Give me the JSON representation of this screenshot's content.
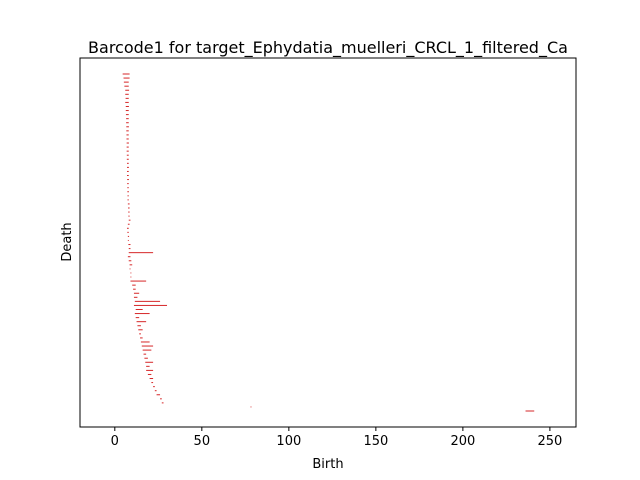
{
  "chart_data": {
    "type": "barcode",
    "title": "Barcode1 for target_Ephydatia_muelleri_CRCL_1_filtered_Ca",
    "xlabel": "Birth",
    "ylabel": "Death",
    "xlim": [
      -20,
      265
    ],
    "xticks": [
      0,
      50,
      100,
      150,
      200,
      250
    ],
    "yticks_shown": false,
    "grid": false,
    "bar_color": "#d62728",
    "bars": [
      [
        4.5,
        8.5
      ],
      [
        5.0,
        8.5
      ],
      [
        5.2,
        8.0
      ],
      [
        5.5,
        8.0
      ],
      [
        6.0,
        8.2
      ],
      [
        6.0,
        8.0
      ],
      [
        6.2,
        8.0
      ],
      [
        6.0,
        8.0
      ],
      [
        6.3,
        8.1
      ],
      [
        6.3,
        8.0
      ],
      [
        6.4,
        8.0
      ],
      [
        6.5,
        8.0
      ],
      [
        6.5,
        8.0
      ],
      [
        6.6,
        8.1
      ],
      [
        6.6,
        8.0
      ],
      [
        6.7,
        8.0
      ],
      [
        6.7,
        8.0
      ],
      [
        6.8,
        8.1
      ],
      [
        6.8,
        8.0
      ],
      [
        6.8,
        8.0
      ],
      [
        6.9,
        8.0
      ],
      [
        6.9,
        8.0
      ],
      [
        7.0,
        8.0
      ],
      [
        7.0,
        8.1
      ],
      [
        7.0,
        8.0
      ],
      [
        7.0,
        8.0
      ],
      [
        7.1,
        8.1
      ],
      [
        7.1,
        8.0
      ],
      [
        7.2,
        8.0
      ],
      [
        7.2,
        8.1
      ],
      [
        7.3,
        8.0
      ],
      [
        7.3,
        8.0
      ],
      [
        7.5,
        8.5
      ],
      [
        7.6,
        8.5
      ],
      [
        7.7,
        8.5
      ],
      [
        7.8,
        8.5
      ],
      [
        8.0,
        9.0
      ],
      [
        7.5,
        8.5
      ],
      [
        7.0,
        8.0
      ],
      [
        7.2,
        8.0
      ],
      [
        7.5,
        8.2
      ],
      [
        7.5,
        8.0
      ],
      [
        7.8,
        9.0
      ],
      [
        8.0,
        9.0
      ],
      [
        8.0,
        22.0
      ],
      [
        7.5,
        9.0
      ],
      [
        8.0,
        9.5
      ],
      [
        8.5,
        10.0
      ],
      [
        8.5,
        9.0
      ],
      [
        9.0,
        9.5
      ],
      [
        9.0,
        9.5
      ],
      [
        9.0,
        18.0
      ],
      [
        10.0,
        12.0
      ],
      [
        10.5,
        12.0
      ],
      [
        11.0,
        14.0
      ],
      [
        11.0,
        13.0
      ],
      [
        11.5,
        26.0
      ],
      [
        11.0,
        30.0
      ],
      [
        12.0,
        16.0
      ],
      [
        11.5,
        20.0
      ],
      [
        12.0,
        14.0
      ],
      [
        12.5,
        18.0
      ],
      [
        13.0,
        15.0
      ],
      [
        13.5,
        16.0
      ],
      [
        14.0,
        15.0
      ],
      [
        14.5,
        16.0
      ],
      [
        15.0,
        20.0
      ],
      [
        15.5,
        22.0
      ],
      [
        16.0,
        21.0
      ],
      [
        16.5,
        18.0
      ],
      [
        17.0,
        19.0
      ],
      [
        17.5,
        22.0
      ],
      [
        18.0,
        20.0
      ],
      [
        18.0,
        22.0
      ],
      [
        19.0,
        21.0
      ],
      [
        20.0,
        22.0
      ],
      [
        21.0,
        22.0
      ],
      [
        22.0,
        23.0
      ],
      [
        23.0,
        24.0
      ],
      [
        24.0,
        26.0
      ],
      [
        26.0,
        27.0
      ],
      [
        27.0,
        28.0
      ],
      [
        78.0,
        78.5
      ],
      [
        236.0,
        241.0
      ]
    ]
  }
}
